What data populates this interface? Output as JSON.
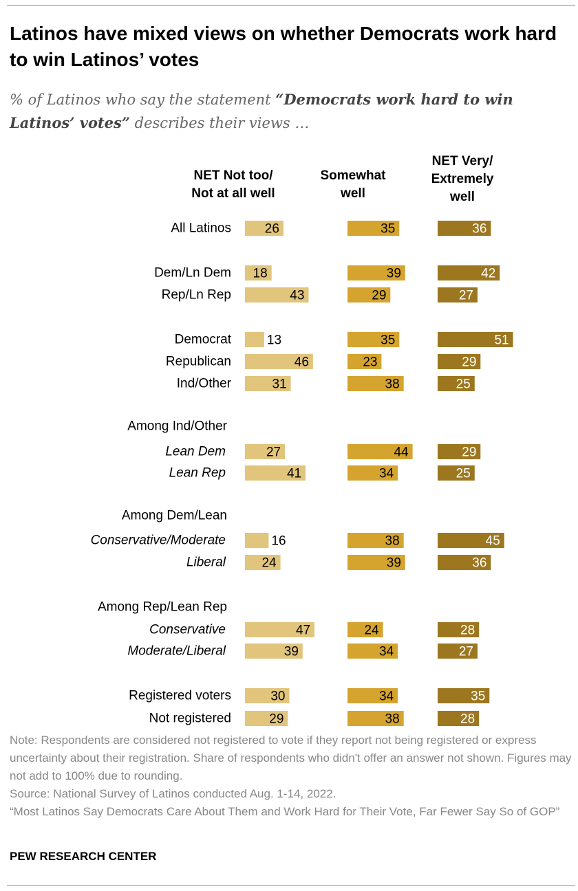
{
  "header": {
    "title": "Latinos have mixed views on whether Democrats work hard to win Latinos’ votes",
    "subtitle_pre": "% of Latinos who say the statement ",
    "subtitle_bold": "“Democrats work hard to win Latinos’ votes”",
    "subtitle_post": " describes their views …"
  },
  "chart_data": {
    "type": "bar",
    "columns": [
      {
        "name": "NET Not too/ Not at all well",
        "lines": [
          "NET Not too/",
          "Not at all well"
        ],
        "color": "#e2c57c"
      },
      {
        "name": "Somewhat well",
        "lines": [
          "Somewhat",
          "well"
        ],
        "color": "#d4a42f"
      },
      {
        "name": "NET Very/ Extremely well",
        "lines": [
          "NET Very/",
          "Extremely",
          "well"
        ],
        "color": "#9c7720"
      }
    ],
    "group_headers": [
      "Among Ind/Other",
      "Among Dem/Lean",
      "Among Rep/Lean Rep"
    ],
    "rows": [
      {
        "label": "All Latinos",
        "italic": false,
        "values": [
          26,
          35,
          36
        ]
      },
      {
        "label": "Dem/Ln Dem",
        "italic": false,
        "values": [
          18,
          39,
          42
        ]
      },
      {
        "label": "Rep/Ln Rep",
        "italic": false,
        "values": [
          43,
          29,
          27
        ]
      },
      {
        "label": "Democrat",
        "italic": false,
        "values": [
          13,
          35,
          51
        ]
      },
      {
        "label": "Republican",
        "italic": false,
        "values": [
          46,
          23,
          29
        ]
      },
      {
        "label": "Ind/Other",
        "italic": false,
        "values": [
          31,
          38,
          25
        ]
      },
      {
        "label": "Lean Dem",
        "italic": true,
        "values": [
          27,
          44,
          29
        ]
      },
      {
        "label": "Lean Rep",
        "italic": true,
        "values": [
          41,
          34,
          25
        ]
      },
      {
        "label": "Conservative/Moderate",
        "italic": true,
        "values": [
          16,
          38,
          45
        ]
      },
      {
        "label": "Liberal",
        "italic": true,
        "values": [
          24,
          39,
          36
        ]
      },
      {
        "label": "Conservative",
        "italic": true,
        "values": [
          47,
          24,
          28
        ]
      },
      {
        "label": "Moderate/Liberal",
        "italic": true,
        "values": [
          39,
          34,
          27
        ]
      },
      {
        "label": "Registered voters",
        "italic": false,
        "values": [
          30,
          34,
          35
        ]
      },
      {
        "label": "Not registered",
        "italic": false,
        "values": [
          29,
          38,
          28
        ]
      }
    ]
  },
  "footer": {
    "note": "Note: Respondents are considered not registered to vote if they report not being registered or express uncertainty about their registration. Share of respondents who didn't offer an answer not shown. Figures may not add to 100% due to rounding.",
    "source": "Source: National Survey of Latinos conducted Aug. 1-14, 2022.",
    "report": "“Most Latinos Say Democrats Care About Them and Work Hard for Their Vote, Far Fewer Say So of GOP”",
    "brand": "PEW RESEARCH CENTER"
  }
}
